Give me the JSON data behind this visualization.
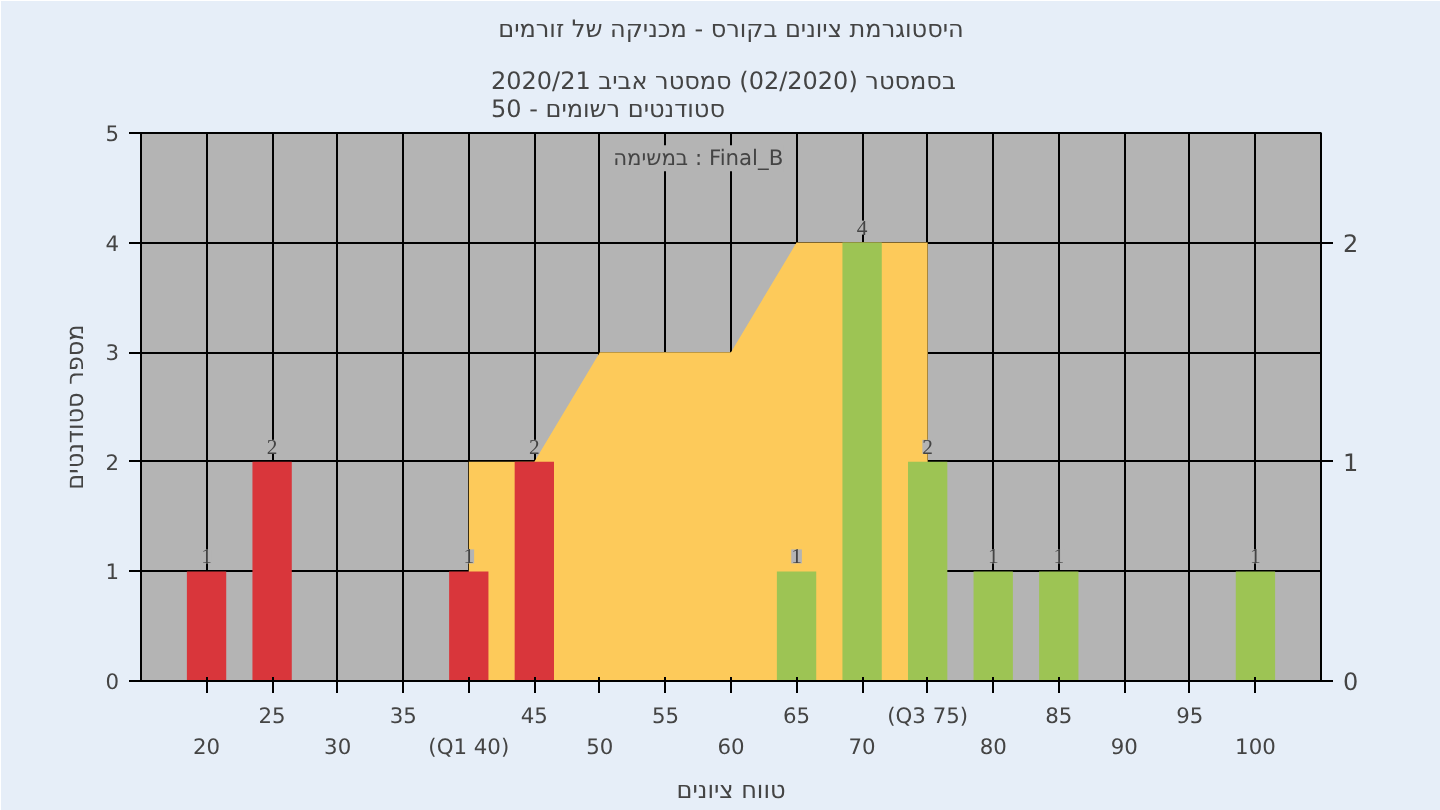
{
  "chart_data": {
    "type": "bar",
    "title": "היסטוגרמת ציונים בקורס - מכניקה של זורמים",
    "subtitle": "בסמסטר  (02/2020)  סמסטר אביב 2020/21\nסטודנטים רשומים - 50",
    "xlabel": "טווח ציונים",
    "ylabel": "מספר סטודנטים",
    "annotations": [
      "במשימה : Final_B"
    ],
    "categories": [
      "20",
      "25",
      "30",
      "35",
      "(Q1 40)",
      "45",
      "50",
      "55",
      "60",
      "65",
      "70",
      "(Q3 75)",
      "80",
      "85",
      "90",
      "95",
      "100"
    ],
    "series": [
      {
        "type": "area",
        "axis": "y2",
        "color": "#fdca5a",
        "values": [
          null,
          null,
          null,
          null,
          1,
          1,
          1.5,
          1.5,
          1.5,
          2,
          2,
          2,
          null,
          null,
          null,
          null,
          null
        ]
      },
      {
        "colors": [
          "#d9363b",
          "#d9363b",
          "#d9363b",
          "#d9363b",
          "#d9363b",
          "#d9363b",
          "#d9363b",
          "#d9363b",
          "#d9363b",
          "#9dc454",
          "#9dc454",
          "#9dc454",
          "#9dc454",
          "#9dc454",
          "#9dc454",
          "#9dc454",
          "#9dc454"
        ],
        "values": [
          1,
          2,
          0,
          0,
          1,
          2,
          0,
          0,
          0,
          1,
          4,
          2,
          1,
          1,
          0,
          0,
          1
        ],
        "value_labels": [
          "1",
          "2",
          null,
          null,
          "1",
          "2",
          null,
          null,
          null,
          "1",
          "4",
          "2",
          "1",
          "1",
          null,
          null,
          "1"
        ]
      }
    ],
    "ylim": [
      0,
      5
    ],
    "yticks": [
      0,
      1,
      2,
      3,
      4,
      5
    ],
    "y2lim": [
      0,
      2.5
    ],
    "y2ticks": [
      0,
      1,
      2
    ],
    "grid": true
  }
}
